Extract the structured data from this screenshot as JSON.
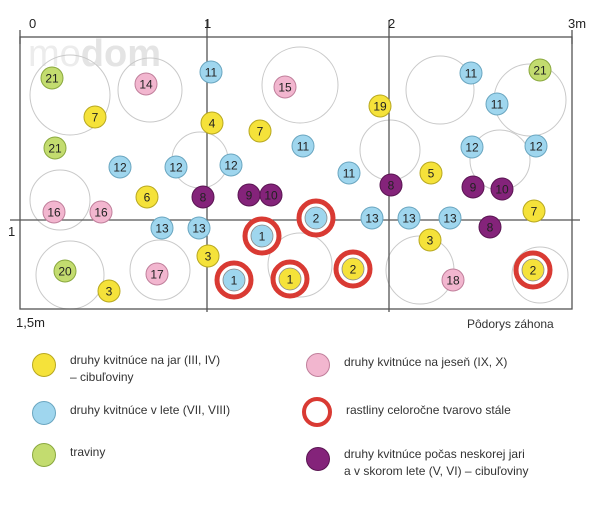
{
  "colors": {
    "spring": "#f5e23a",
    "summer": "#9fd6ee",
    "grass": "#c3dc6f",
    "autumn": "#f2b6cf",
    "evergreen_ring": "#d93a33",
    "late_spring": "#84237a",
    "grid": "#555555"
  },
  "plan": {
    "watermark_light": "mo",
    "watermark_bold": "dom",
    "axis_x": [
      "0",
      "1",
      "2",
      "3m"
    ],
    "axis_y": [
      "1",
      "1,5m"
    ],
    "caption": "Pôdorys záhona",
    "plants": [
      {
        "n": "21",
        "t": "grass"
      },
      {
        "n": "14",
        "t": "autumn"
      },
      {
        "n": "11",
        "t": "summer"
      },
      {
        "n": "15",
        "t": "autumn"
      },
      {
        "n": "19",
        "t": "spring"
      },
      {
        "n": "11",
        "t": "summer"
      },
      {
        "n": "21",
        "t": "grass"
      },
      {
        "n": "7",
        "t": "spring"
      },
      {
        "n": "11",
        "t": "summer"
      },
      {
        "n": "4",
        "t": "spring"
      },
      {
        "n": "7",
        "t": "spring"
      },
      {
        "n": "21",
        "t": "grass"
      },
      {
        "n": "11",
        "t": "summer"
      },
      {
        "n": "12",
        "t": "summer"
      },
      {
        "n": "12",
        "t": "summer"
      },
      {
        "n": "12",
        "t": "summer"
      },
      {
        "n": "12",
        "t": "summer"
      },
      {
        "n": "12",
        "t": "summer"
      },
      {
        "n": "11",
        "t": "summer"
      },
      {
        "n": "5",
        "t": "spring"
      },
      {
        "n": "6",
        "t": "spring"
      },
      {
        "n": "8",
        "t": "late_spring"
      },
      {
        "n": "9",
        "t": "late_spring"
      },
      {
        "n": "10",
        "t": "late_spring"
      },
      {
        "n": "8",
        "t": "late_spring"
      },
      {
        "n": "9",
        "t": "late_spring"
      },
      {
        "n": "10",
        "t": "late_spring"
      },
      {
        "n": "16",
        "t": "autumn"
      },
      {
        "n": "16",
        "t": "autumn"
      },
      {
        "n": "2",
        "t": "evergreen"
      },
      {
        "n": "7",
        "t": "spring"
      },
      {
        "n": "13",
        "t": "summer"
      },
      {
        "n": "13",
        "t": "summer"
      },
      {
        "n": "1",
        "t": "evergreen"
      },
      {
        "n": "13",
        "t": "summer"
      },
      {
        "n": "13",
        "t": "summer"
      },
      {
        "n": "13",
        "t": "summer"
      },
      {
        "n": "8",
        "t": "late_spring"
      },
      {
        "n": "3",
        "t": "spring"
      },
      {
        "n": "3",
        "t": "spring"
      },
      {
        "n": "20",
        "t": "grass"
      },
      {
        "n": "17",
        "t": "autumn"
      },
      {
        "n": "2",
        "t": "evergreen"
      },
      {
        "n": "18",
        "t": "autumn"
      },
      {
        "n": "2",
        "t": "evergreen"
      },
      {
        "n": "1",
        "t": "evergreen"
      },
      {
        "n": "1",
        "t": "evergreen"
      },
      {
        "n": "3",
        "t": "spring"
      }
    ]
  },
  "legend": [
    {
      "type": "spring",
      "text": "druhy kvitnúce na jar (III, IV)\n– cibuľoviny"
    },
    {
      "type": "summer",
      "text": "druhy kvitnúce v lete (VII, VIII)"
    },
    {
      "type": "grass",
      "text": "traviny"
    },
    {
      "type": "autumn",
      "text": "druhy kvitnúce na jeseň (IX, X)"
    },
    {
      "type": "evergreen",
      "text": "rastliny celoročne tvarovo stále"
    },
    {
      "type": "late_spring",
      "text": "druhy kvitnúce počas neskorej jari\na v skorom lete (V, VI) – cibuľoviny"
    }
  ]
}
